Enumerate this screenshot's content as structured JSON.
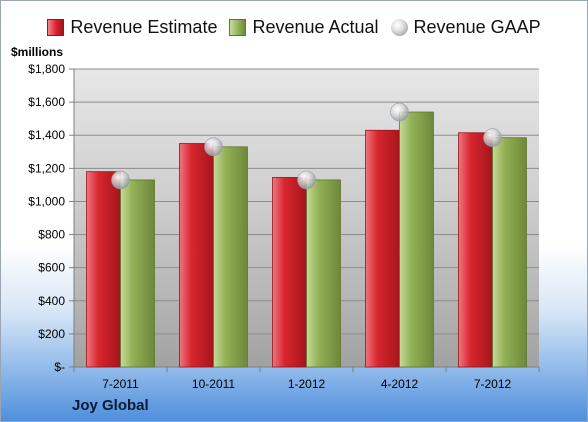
{
  "chart_data": {
    "type": "bar",
    "title": "",
    "xlabel": "",
    "ylabel": "$millions",
    "categories": [
      "7-2011",
      "10-2011",
      "1-2012",
      "4-2012",
      "7-2012"
    ],
    "series": [
      {
        "name": "Revenue Estimate",
        "kind": "bar",
        "color": "#d42a2f",
        "values": [
          1180,
          1350,
          1145,
          1430,
          1415
        ]
      },
      {
        "name": "Revenue Actual",
        "kind": "bar",
        "color": "#8fad52",
        "values": [
          1130,
          1330,
          1130,
          1540,
          1385
        ]
      },
      {
        "name": "Revenue GAAP",
        "kind": "marker",
        "color": "#c0c4ca",
        "values": [
          1130,
          1330,
          1130,
          1540,
          1385
        ]
      }
    ],
    "ylim": [
      0,
      1800
    ],
    "yticks": [
      0,
      200,
      400,
      600,
      800,
      1000,
      1200,
      1400,
      1600,
      1800
    ],
    "ytick_labels": [
      "$-",
      "$200",
      "$400",
      "$600",
      "$800",
      "$1,000",
      "$1,200",
      "$1,400",
      "$1,600",
      "$1,800"
    ],
    "grid": true,
    "legend_position": "top"
  },
  "unit_label": "$millions",
  "company": "Joy Global"
}
